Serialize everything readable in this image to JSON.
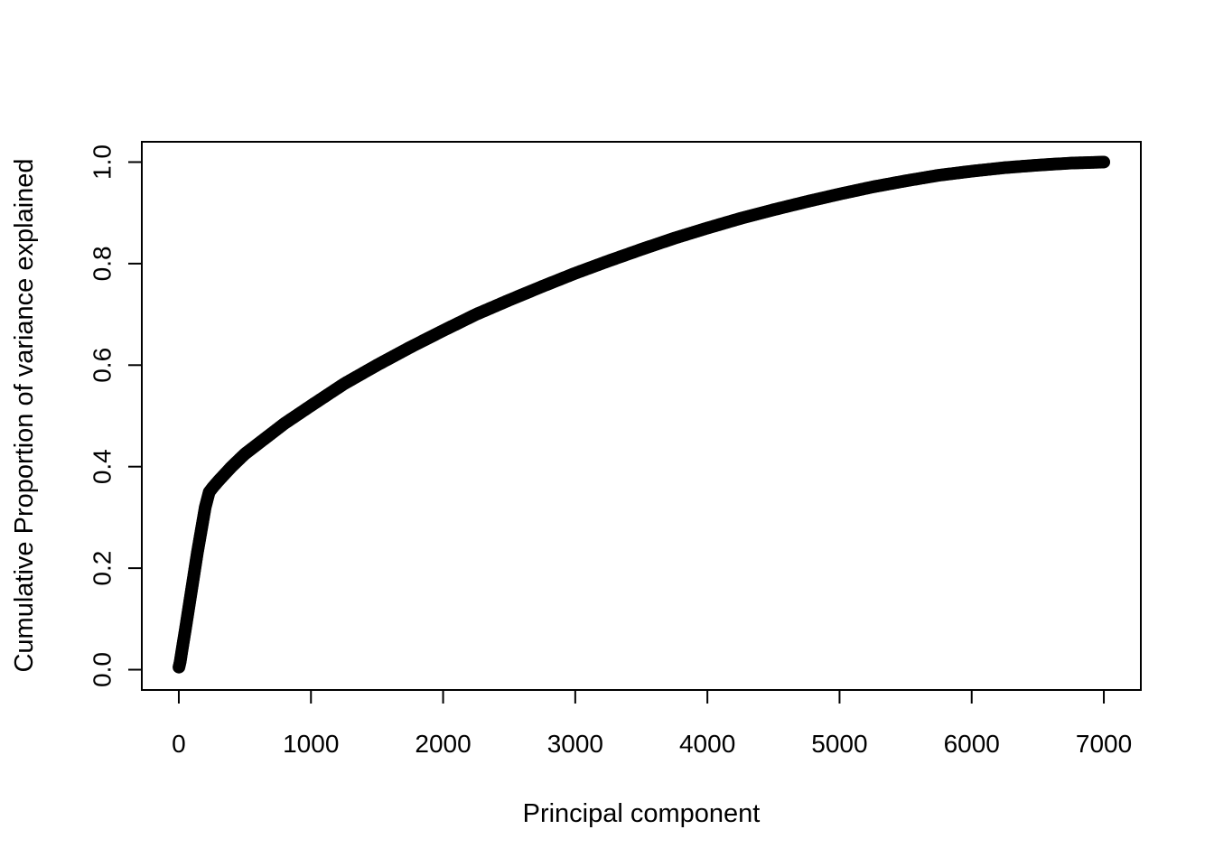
{
  "chart_data": {
    "type": "scatter",
    "title": "",
    "xlabel": "Principal component",
    "ylabel": "Cumulative Proportion of variance explained",
    "xlim": [
      -280,
      7280
    ],
    "ylim": [
      -0.04,
      1.04
    ],
    "xticks": [
      0,
      1000,
      2000,
      3000,
      4000,
      5000,
      6000,
      7000
    ],
    "yticks": [
      0.0,
      0.2,
      0.4,
      0.6,
      0.8,
      1.0
    ],
    "xtick_labels": [
      "0",
      "1000",
      "2000",
      "3000",
      "4000",
      "5000",
      "6000",
      "7000"
    ],
    "ytick_labels": [
      "0.0",
      "0.2",
      "0.4",
      "0.6",
      "0.8",
      "1.0"
    ],
    "grid": false,
    "legend": "none",
    "series": [
      {
        "color": "#000000",
        "marker": "filled-circle",
        "x": [
          1,
          10,
          25,
          50,
          80,
          110,
          140,
          170,
          200,
          230,
          260,
          300,
          400,
          500,
          600,
          800,
          1000,
          1250,
          1500,
          1750,
          2000,
          2250,
          2500,
          2750,
          3000,
          3250,
          3500,
          3750,
          4000,
          4250,
          4500,
          4750,
          5000,
          5250,
          5500,
          5750,
          6000,
          6250,
          6500,
          6750,
          7000
        ],
        "y": [
          0.005,
          0.015,
          0.04,
          0.08,
          0.13,
          0.18,
          0.23,
          0.275,
          0.32,
          0.35,
          0.36,
          0.372,
          0.4,
          0.425,
          0.445,
          0.485,
          0.52,
          0.563,
          0.6,
          0.635,
          0.668,
          0.7,
          0.728,
          0.755,
          0.781,
          0.805,
          0.828,
          0.85,
          0.87,
          0.889,
          0.906,
          0.922,
          0.937,
          0.951,
          0.963,
          0.974,
          0.982,
          0.989,
          0.994,
          0.998,
          1.0
        ]
      }
    ]
  }
}
